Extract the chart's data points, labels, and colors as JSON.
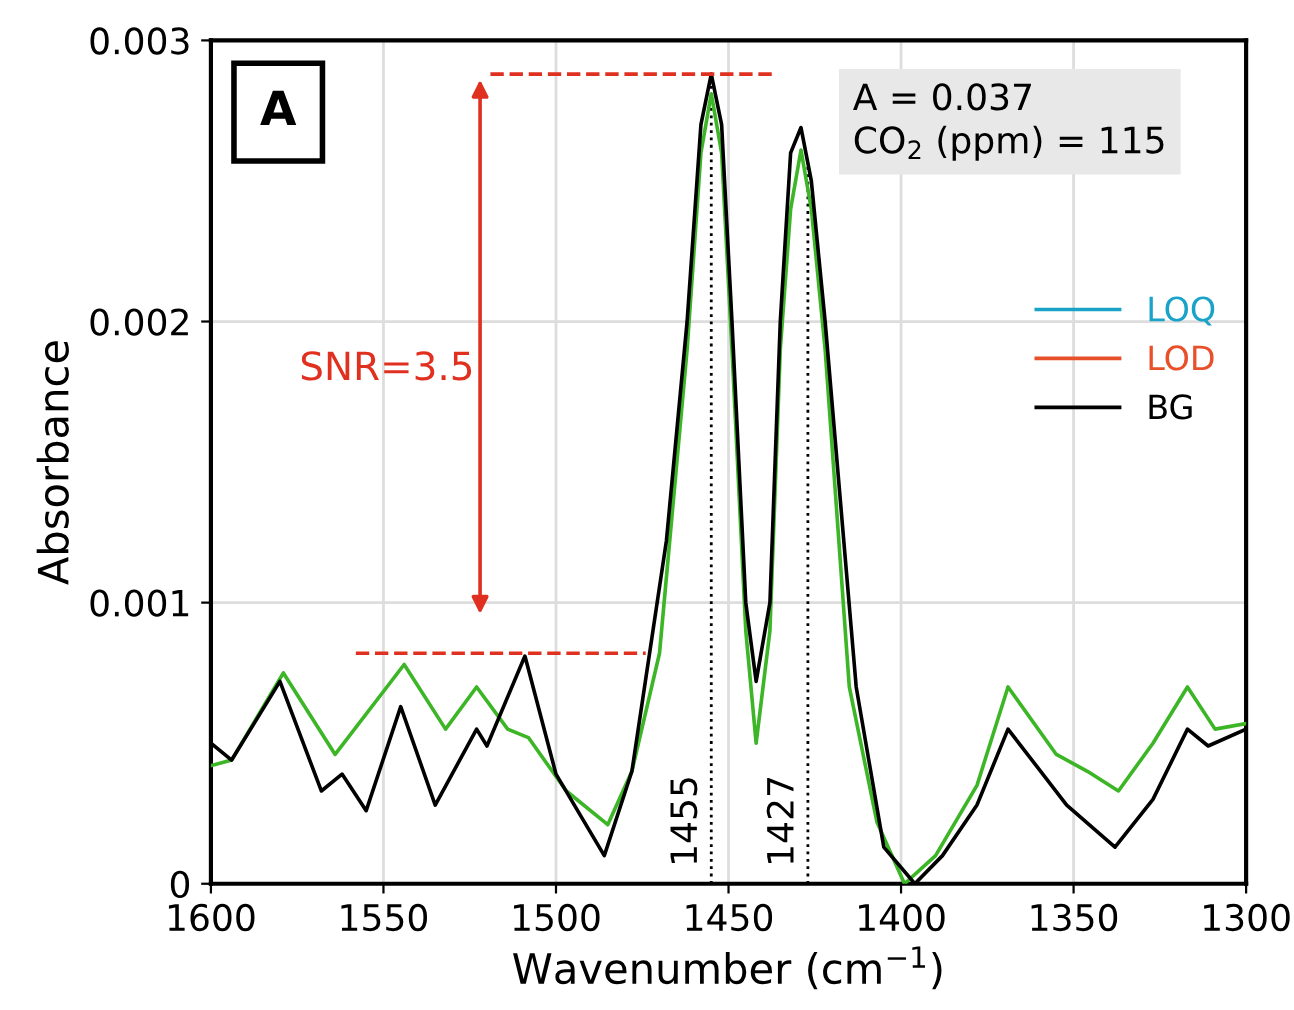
{
  "chart_data": {
    "type": "line",
    "xlabel": "Wavenumber (cm$^{−1}$)",
    "ylabel": "Absorbance",
    "xlim": [
      1600,
      1300
    ],
    "ylim": [
      0,
      0.003
    ],
    "xticks": [
      1600,
      1550,
      1500,
      1450,
      1400,
      1350,
      1300
    ],
    "yticks": [
      0,
      0.001,
      0.002,
      0.003
    ],
    "grid": true,
    "legend": "right",
    "line_style": "solid",
    "marker": "none",
    "series": [
      {
        "name": "LOQ",
        "color": "#1aa3c8"
      },
      {
        "name": "LOD",
        "color": "#e8502a"
      },
      {
        "color": "#3cb526",
        "x": [
          1600,
          1594,
          1579,
          1564,
          1544,
          1532,
          1523,
          1514,
          1508,
          1497,
          1485,
          1478,
          1470,
          1462,
          1458,
          1455,
          1452,
          1449,
          1445,
          1442,
          1438,
          1435,
          1432,
          1429,
          1426,
          1422,
          1415,
          1407,
          1399,
          1390,
          1378,
          1369,
          1355,
          1346,
          1337,
          1327,
          1317,
          1309,
          1300
        ],
        "values": [
          0.00042,
          0.00044,
          0.00075,
          0.00046,
          0.00078,
          0.00055,
          0.0007,
          0.00055,
          0.00052,
          0.00033,
          0.00021,
          0.0004,
          0.00082,
          0.0019,
          0.0026,
          0.00281,
          0.0026,
          0.0019,
          0.0009,
          0.0005,
          0.0009,
          0.0019,
          0.0024,
          0.00261,
          0.0024,
          0.0019,
          0.0007,
          0.00022,
          0,
          0.0001,
          0.00035,
          0.0007,
          0.00046,
          0.0004,
          0.00033,
          0.0005,
          0.0007,
          0.00055,
          0.00057
        ]
      },
      {
        "name": "BG",
        "color": "#000000",
        "x": [
          1600,
          1594,
          1580,
          1568,
          1562,
          1555,
          1545,
          1535,
          1523,
          1520,
          1509,
          1500,
          1486,
          1478,
          1468,
          1462,
          1458,
          1455,
          1452,
          1449,
          1445,
          1442,
          1438,
          1435,
          1432,
          1429,
          1426,
          1422,
          1413,
          1405,
          1396,
          1388,
          1378,
          1369,
          1352,
          1338,
          1327,
          1317,
          1311,
          1300
        ],
        "values": [
          0.0005,
          0.00044,
          0.00072,
          0.00033,
          0.00039,
          0.00026,
          0.00063,
          0.00028,
          0.00055,
          0.00049,
          0.00081,
          0.00039,
          0.0001,
          0.0004,
          0.00122,
          0.002,
          0.0027,
          0.00288,
          0.0027,
          0.002,
          0.001,
          0.00072,
          0.001,
          0.002,
          0.0026,
          0.00269,
          0.0025,
          0.002,
          0.0007,
          0.00013,
          0,
          0.0001,
          0.00028,
          0.00055,
          0.00028,
          0.00013,
          0.0003,
          0.00055,
          0.00049,
          0.00055
        ]
      },
      {
        "color": "#e03020",
        "line_style": "dashed",
        "x": [
          1519,
          1437
        ],
        "values": [
          0.00288,
          0.00288
        ]
      },
      {
        "color": "#e03020",
        "line_style": "dashed",
        "x": [
          1558,
          1474
        ],
        "values": [
          0.00082,
          0.00082
        ]
      }
    ],
    "ref_lines": [
      {
        "axis": "x",
        "value": 1455,
        "label": "1455",
        "color": "#000000",
        "line_style": "dotted"
      },
      {
        "axis": "x",
        "value": 1427,
        "label": "1427",
        "color": "#000000",
        "line_style": "dotted"
      }
    ],
    "annotations": [
      "A",
      "A = 0.037",
      "CO$_{2}$ (ppm) = 115",
      "SNR=3.5"
    ]
  }
}
